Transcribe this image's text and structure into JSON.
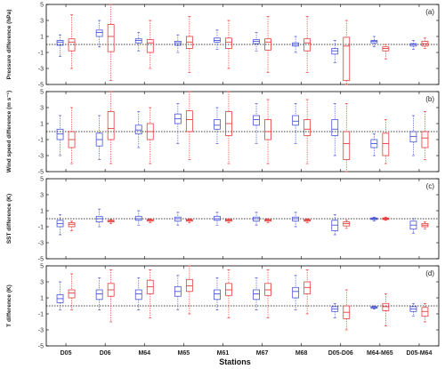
{
  "chart_data": {
    "type": "boxplot",
    "categories": [
      "D05",
      "D06",
      "M64",
      "M65",
      "M61",
      "M67",
      "M68",
      "D05-D06",
      "M64-M65",
      "D05-M64"
    ],
    "xlabel": "Stations",
    "colors": {
      "series1": "#4a55d6",
      "series2": "#e63b3b"
    },
    "panels": [
      {
        "label": "(a)",
        "ylabel": "Pressure difference (hPa)",
        "ylim": [
          -5,
          5
        ],
        "yticks": [
          -5,
          -3,
          -1,
          1,
          3,
          5
        ],
        "series1": [
          {
            "lo": -1.5,
            "q1": -0.1,
            "med": 0.3,
            "q3": 0.5,
            "hi": 1.2
          },
          {
            "lo": -0.3,
            "q1": 1.0,
            "med": 1.5,
            "q3": 1.8,
            "hi": 3.0
          },
          {
            "lo": -0.8,
            "q1": 0.2,
            "med": 0.5,
            "q3": 0.7,
            "hi": 1.5
          },
          {
            "lo": -1.0,
            "q1": -0.1,
            "med": 0.2,
            "q3": 0.4,
            "hi": 1.2
          },
          {
            "lo": -0.6,
            "q1": 0.3,
            "med": 0.5,
            "q3": 0.8,
            "hi": 1.8
          },
          {
            "lo": -0.8,
            "q1": 0.1,
            "med": 0.4,
            "q3": 0.6,
            "hi": 1.5
          },
          {
            "lo": -1.0,
            "q1": -0.2,
            "med": 0.0,
            "q3": 0.2,
            "hi": 1.0
          },
          {
            "lo": -2.3,
            "q1": -1.2,
            "med": -0.8,
            "q3": -0.5,
            "hi": 0.5
          },
          {
            "lo": -0.3,
            "q1": 0.2,
            "med": 0.4,
            "q3": 0.5,
            "hi": 1.0
          },
          {
            "lo": -0.6,
            "q1": -0.2,
            "med": 0.0,
            "q3": 0.1,
            "hi": 0.5
          }
        ],
        "series2": [
          {
            "lo": -3.0,
            "q1": -0.8,
            "med": 0.3,
            "q3": 0.7,
            "hi": 3.7
          },
          {
            "lo": -4.5,
            "q1": -0.9,
            "med": 1.0,
            "q3": 2.5,
            "hi": 5.0
          },
          {
            "lo": -3.0,
            "q1": -1.0,
            "med": 0.2,
            "q3": 0.6,
            "hi": 3.0
          },
          {
            "lo": -3.5,
            "q1": -0.5,
            "med": 0.3,
            "q3": 1.0,
            "hi": 3.5
          },
          {
            "lo": -3.0,
            "q1": -0.5,
            "med": 0.3,
            "q3": 0.8,
            "hi": 3.0
          },
          {
            "lo": -3.5,
            "q1": -0.7,
            "med": 0.3,
            "q3": 0.7,
            "hi": 3.5
          },
          {
            "lo": -3.5,
            "q1": -0.8,
            "med": 0.2,
            "q3": 0.7,
            "hi": 3.5
          },
          {
            "lo": -5.0,
            "q1": -4.5,
            "med": -0.2,
            "q3": 0.9,
            "hi": 3.0
          },
          {
            "lo": -1.8,
            "q1": -0.8,
            "med": -0.5,
            "q3": -0.3,
            "hi": 0.0
          },
          {
            "lo": -0.5,
            "q1": -0.2,
            "med": 0.1,
            "q3": 0.4,
            "hi": 0.8
          }
        ]
      },
      {
        "label": "(b)",
        "ylabel": "Wind speed difference (m s⁻¹)",
        "ylim": [
          -5,
          5
        ],
        "yticks": [
          -5,
          -3,
          -1,
          1,
          3,
          5
        ],
        "series1": [
          {
            "lo": -3.0,
            "q1": -1.0,
            "med": -0.3,
            "q3": 0.3,
            "hi": 2.0
          },
          {
            "lo": -3.5,
            "q1": -1.8,
            "med": -1.0,
            "q3": -0.2,
            "hi": 2.0
          },
          {
            "lo": -2.0,
            "q1": -0.3,
            "med": 0.2,
            "q3": 0.8,
            "hi": 2.5
          },
          {
            "lo": -1.5,
            "q1": 1.0,
            "med": 1.6,
            "q3": 2.2,
            "hi": 3.5
          },
          {
            "lo": -1.5,
            "q1": 0.3,
            "med": 0.8,
            "q3": 1.5,
            "hi": 3.0
          },
          {
            "lo": -1.5,
            "q1": 0.8,
            "med": 1.5,
            "q3": 2.0,
            "hi": 3.5
          },
          {
            "lo": -1.5,
            "q1": 0.8,
            "med": 1.3,
            "q3": 2.0,
            "hi": 3.5
          },
          {
            "lo": -3.0,
            "q1": -0.5,
            "med": 0.3,
            "q3": 1.5,
            "hi": 3.5
          },
          {
            "lo": -3.0,
            "q1": -2.0,
            "med": -1.5,
            "q3": -1.0,
            "hi": -0.3
          },
          {
            "lo": -3.0,
            "q1": -1.3,
            "med": -0.6,
            "q3": 0.0,
            "hi": 2.0
          }
        ],
        "series2": [
          {
            "lo": -4.0,
            "q1": -2.0,
            "med": -1.0,
            "q3": 0.0,
            "hi": 3.0
          },
          {
            "lo": -4.0,
            "q1": -1.0,
            "med": 0.4,
            "q3": 2.5,
            "hi": 5.0
          },
          {
            "lo": -4.0,
            "q1": -1.0,
            "med": 0.0,
            "q3": 1.0,
            "hi": 3.0
          },
          {
            "lo": -3.5,
            "q1": 0.0,
            "med": 1.5,
            "q3": 2.6,
            "hi": 5.0
          },
          {
            "lo": -4.0,
            "q1": -0.5,
            "med": 1.0,
            "q3": 2.5,
            "hi": 5.0
          },
          {
            "lo": -4.0,
            "q1": -1.0,
            "med": 0.0,
            "q3": 1.5,
            "hi": 4.0
          },
          {
            "lo": -4.0,
            "q1": -0.5,
            "med": 0.3,
            "q3": 1.5,
            "hi": 4.0
          },
          {
            "lo": -5.0,
            "q1": -3.5,
            "med": -1.5,
            "q3": 0.0,
            "hi": 3.5
          },
          {
            "lo": -4.0,
            "q1": -3.0,
            "med": -1.5,
            "q3": -0.2,
            "hi": 1.5
          },
          {
            "lo": -3.5,
            "q1": -2.0,
            "med": -0.8,
            "q3": 0.0,
            "hi": 2.5
          }
        ]
      },
      {
        "label": "(c)",
        "ylabel": "SST difference (K)",
        "ylim": [
          -5,
          5
        ],
        "yticks": [
          -5,
          -3,
          -1,
          1,
          3,
          5
        ],
        "series1": [
          {
            "lo": -2.0,
            "q1": -1.0,
            "med": -0.6,
            "q3": -0.2,
            "hi": 0.5
          },
          {
            "lo": -1.0,
            "q1": -0.4,
            "med": 0.0,
            "q3": 0.3,
            "hi": 1.2
          },
          {
            "lo": -0.8,
            "q1": -0.2,
            "med": 0.0,
            "q3": 0.3,
            "hi": 1.0
          },
          {
            "lo": -0.8,
            "q1": -0.3,
            "med": 0.0,
            "q3": 0.2,
            "hi": 0.8
          },
          {
            "lo": -0.8,
            "q1": -0.2,
            "med": 0.0,
            "q3": 0.3,
            "hi": 0.8
          },
          {
            "lo": -0.8,
            "q1": -0.3,
            "med": 0.0,
            "q3": 0.2,
            "hi": 0.8
          },
          {
            "lo": -1.0,
            "q1": -0.3,
            "med": 0.0,
            "q3": 0.2,
            "hi": 0.8
          },
          {
            "lo": -2.0,
            "q1": -1.5,
            "med": -0.8,
            "q3": -0.2,
            "hi": 0.5
          },
          {
            "lo": -0.3,
            "q1": -0.1,
            "med": 0.0,
            "q3": 0.1,
            "hi": 0.2
          },
          {
            "lo": -1.8,
            "q1": -1.3,
            "med": -0.8,
            "q3": -0.3,
            "hi": 0.0
          }
        ],
        "series2": [
          {
            "lo": -1.5,
            "q1": -1.0,
            "med": -0.7,
            "q3": -0.5,
            "hi": -0.3
          },
          {
            "lo": -0.6,
            "q1": -0.4,
            "med": -0.3,
            "q3": -0.2,
            "hi": -0.1
          },
          {
            "lo": -0.5,
            "q1": -0.3,
            "med": -0.2,
            "q3": -0.1,
            "hi": 0.0
          },
          {
            "lo": -0.5,
            "q1": -0.3,
            "med": -0.2,
            "q3": -0.1,
            "hi": 0.0
          },
          {
            "lo": -0.5,
            "q1": -0.3,
            "med": -0.2,
            "q3": -0.1,
            "hi": 0.0
          },
          {
            "lo": -0.5,
            "q1": -0.3,
            "med": -0.2,
            "q3": -0.1,
            "hi": 0.0
          },
          {
            "lo": -0.5,
            "q1": -0.3,
            "med": -0.2,
            "q3": -0.1,
            "hi": 0.0
          },
          {
            "lo": -1.2,
            "q1": -0.9,
            "med": -0.6,
            "q3": -0.4,
            "hi": -0.2
          },
          {
            "lo": -0.2,
            "q1": -0.1,
            "med": 0.0,
            "q3": 0.1,
            "hi": 0.2
          },
          {
            "lo": -1.3,
            "q1": -1.0,
            "med": -0.8,
            "q3": -0.6,
            "hi": -0.4
          }
        ]
      },
      {
        "label": "(d)",
        "ylabel": "T difference (K)",
        "ylim": [
          -5,
          5
        ],
        "yticks": [
          -5,
          -3,
          -1,
          1,
          3,
          5
        ],
        "series1": [
          {
            "lo": -0.5,
            "q1": 0.4,
            "med": 0.9,
            "q3": 1.4,
            "hi": 3.0
          },
          {
            "lo": -0.5,
            "q1": 0.8,
            "med": 1.5,
            "q3": 2.0,
            "hi": 3.5
          },
          {
            "lo": -0.5,
            "q1": 0.8,
            "med": 1.5,
            "q3": 2.0,
            "hi": 3.5
          },
          {
            "lo": -0.5,
            "q1": 1.2,
            "med": 1.8,
            "q3": 2.4,
            "hi": 3.8
          },
          {
            "lo": -0.5,
            "q1": 0.8,
            "med": 1.5,
            "q3": 2.0,
            "hi": 3.5
          },
          {
            "lo": -0.5,
            "q1": 0.8,
            "med": 1.5,
            "q3": 2.0,
            "hi": 3.5
          },
          {
            "lo": -0.5,
            "q1": 1.0,
            "med": 1.8,
            "q3": 2.3,
            "hi": 3.8
          },
          {
            "lo": -1.5,
            "q1": -0.7,
            "med": -0.4,
            "q3": -0.1,
            "hi": 0.3
          },
          {
            "lo": -0.4,
            "q1": -0.3,
            "med": -0.2,
            "q3": -0.1,
            "hi": 0.0
          },
          {
            "lo": -1.3,
            "q1": -0.7,
            "med": -0.4,
            "q3": -0.1,
            "hi": 0.3
          }
        ],
        "series2": [
          {
            "lo": -0.5,
            "q1": 1.0,
            "med": 1.6,
            "q3": 2.0,
            "hi": 4.0
          },
          {
            "lo": -2.0,
            "q1": 1.2,
            "med": 2.0,
            "q3": 2.8,
            "hi": 4.5
          },
          {
            "lo": -1.5,
            "q1": 1.5,
            "med": 2.4,
            "q3": 3.2,
            "hi": 4.5
          },
          {
            "lo": -1.0,
            "q1": 1.8,
            "med": 2.5,
            "q3": 3.3,
            "hi": 5.0
          },
          {
            "lo": -1.5,
            "q1": 1.3,
            "med": 2.0,
            "q3": 2.8,
            "hi": 4.5
          },
          {
            "lo": -1.5,
            "q1": 1.3,
            "med": 2.0,
            "q3": 2.8,
            "hi": 4.5
          },
          {
            "lo": -1.0,
            "q1": 1.5,
            "med": 2.3,
            "q3": 3.0,
            "hi": 4.5
          },
          {
            "lo": -3.0,
            "q1": -1.6,
            "med": -0.8,
            "q3": 0.0,
            "hi": 2.0
          },
          {
            "lo": -2.5,
            "q1": -0.6,
            "med": -0.1,
            "q3": 0.3,
            "hi": 1.5
          },
          {
            "lo": -2.0,
            "q1": -1.3,
            "med": -0.7,
            "q3": -0.2,
            "hi": 0.3
          }
        ]
      }
    ]
  }
}
